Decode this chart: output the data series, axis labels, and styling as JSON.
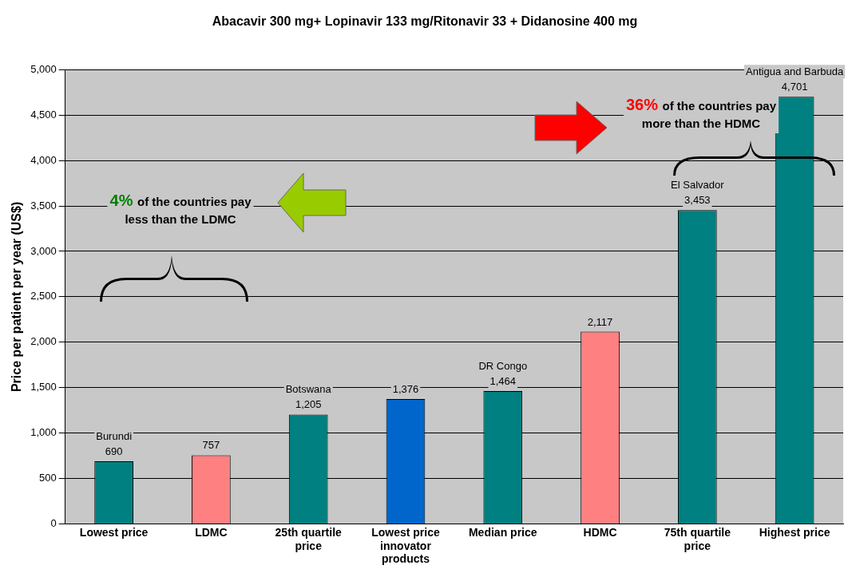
{
  "chart_data": {
    "type": "bar",
    "title": "Abacavir 300 mg+ Lopinavir 133 mg/Ritonavir 33 + Didanosine 400 mg",
    "ylabel": "Price per patient per year (US$)",
    "categories": [
      "Lowest price",
      "LDMC",
      "25th quartile price",
      "Lowest price innovator products",
      "Median price",
      "HDMC",
      "75th quartile price",
      "Highest price"
    ],
    "values": [
      690,
      757,
      1205,
      1376,
      1464,
      2117,
      3453,
      4701
    ],
    "colors": [
      "#008080",
      "#ff8080",
      "#008080",
      "#0066cc",
      "#008080",
      "#ff8080",
      "#008080",
      "#008080"
    ],
    "value_labels": [
      "690",
      "757",
      "1,205",
      "1,376",
      "1,464",
      "2,117",
      "3,453",
      "4,701"
    ],
    "ylim": [
      0,
      5000
    ],
    "yticks": [
      {
        "value": 0,
        "label": "0"
      },
      {
        "value": 500,
        "label": "500"
      },
      {
        "value": 1000,
        "label": "1,000"
      },
      {
        "value": 1500,
        "label": "1,500"
      },
      {
        "value": 2000,
        "label": "2,000"
      },
      {
        "value": 2500,
        "label": "2,500"
      },
      {
        "value": 3000,
        "label": "3,000"
      },
      {
        "value": 3500,
        "label": "3,500"
      },
      {
        "value": 4000,
        "label": "4,000"
      },
      {
        "value": 4500,
        "label": "4,500"
      },
      {
        "value": 5000,
        "label": "5,000"
      }
    ],
    "grid": "y",
    "legend": false,
    "annotations": [
      {
        "text": "Burundi",
        "x": "Lowest price",
        "y": 690
      },
      {
        "text": "Botswana",
        "x": "25th quartile price",
        "y": 1205
      },
      {
        "text": "DR Congo",
        "x": "Median price",
        "y": 1464
      },
      {
        "text": "El Salvador",
        "x": "75th quartile price",
        "y": 3453
      },
      {
        "text": "Antigua and Barbuda",
        "x": "Highest price",
        "y": 4701
      },
      "4% of the countries pay less than the LDMC",
      "36% of the countries pay more than the HDMC"
    ]
  }
}
